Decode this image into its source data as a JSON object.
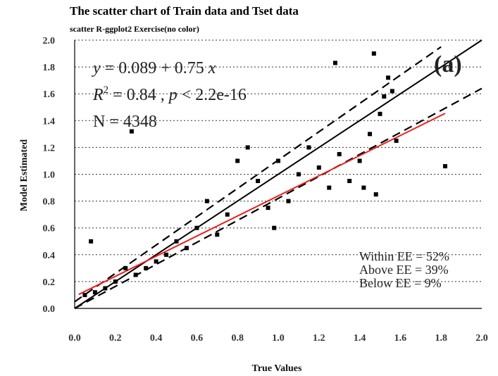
{
  "chart_data": {
    "type": "scatter",
    "title": "The scatter chart of Train data and Tset data",
    "subtitle": "scatter R-ggplot2 Exercise(no color)",
    "xlabel": "True Values",
    "ylabel": "Model Estimated",
    "xlim": [
      0.0,
      2.0
    ],
    "ylim": [
      0.0,
      2.0
    ],
    "xticks": [
      "0.0",
      "0.2",
      "0.4",
      "0.6",
      "0.8",
      "1.0",
      "1.2",
      "1.4",
      "1.6",
      "1.8",
      "2.0"
    ],
    "yticks": [
      "0.0",
      "0.2",
      "0.4",
      "0.6",
      "0.8",
      "1.0",
      "1.2",
      "1.4",
      "1.6",
      "1.8",
      "2.0"
    ],
    "grid": "horizontal-dotted",
    "panel_label": "(a)",
    "annotations": {
      "equation_prefix": "y",
      "equation_body": " = 0.089 + 0.75 ",
      "equation_var": "x",
      "r2_prefix": "R",
      "r2_sup": "2",
      "r2_body": " = 0.84 , ",
      "p_var": "p",
      "p_body": " < 2.2e-16",
      "n_text": "N = 4348",
      "within_ee": "Within EE = 52%",
      "above_ee": "Above EE = 39%",
      "below_ee": "Below EE = 9%"
    },
    "lines": {
      "one_to_one": {
        "x": [
          0.0,
          2.0
        ],
        "y": [
          0.0,
          2.0
        ],
        "color": "#000000",
        "style": "solid"
      },
      "ee_upper": {
        "x": [
          0.0,
          1.8
        ],
        "y": [
          0.05,
          1.95
        ],
        "color": "#000000",
        "style": "dashed"
      },
      "ee_lower": {
        "x": [
          0.0,
          2.0
        ],
        "y": [
          0.0,
          1.64
        ],
        "color": "#000000",
        "style": "dashed"
      },
      "regression": {
        "x": [
          0.02,
          1.82
        ],
        "y": [
          0.104,
          1.454
        ],
        "color": "#e8201c",
        "style": "solid"
      }
    },
    "series": [
      {
        "points": [
          [
            1.28,
            1.83
          ],
          [
            1.47,
            1.9
          ],
          [
            1.54,
            1.72
          ],
          [
            1.82,
            1.06
          ],
          [
            1.56,
            1.62
          ],
          [
            1.52,
            1.58
          ],
          [
            1.45,
            1.3
          ],
          [
            1.5,
            1.45
          ],
          [
            1.58,
            1.25
          ],
          [
            1.4,
            1.1
          ],
          [
            1.35,
            0.95
          ],
          [
            1.42,
            0.9
          ],
          [
            1.48,
            0.85
          ],
          [
            1.3,
            1.15
          ],
          [
            1.25,
            0.9
          ],
          [
            1.2,
            1.05
          ],
          [
            1.15,
            1.2
          ],
          [
            1.1,
            1.0
          ],
          [
            1.05,
            0.8
          ],
          [
            1.0,
            1.1
          ],
          [
            0.98,
            0.6
          ],
          [
            0.95,
            0.75
          ],
          [
            0.9,
            0.95
          ],
          [
            0.85,
            1.2
          ],
          [
            0.8,
            1.1
          ],
          [
            0.75,
            0.7
          ],
          [
            0.7,
            0.55
          ],
          [
            0.65,
            0.8
          ],
          [
            0.6,
            0.6
          ],
          [
            0.55,
            0.45
          ],
          [
            0.5,
            0.5
          ],
          [
            0.45,
            0.4
          ],
          [
            0.4,
            0.35
          ],
          [
            0.35,
            0.3
          ],
          [
            0.3,
            0.25
          ],
          [
            0.28,
            1.32
          ],
          [
            0.25,
            0.3
          ],
          [
            0.2,
            0.2
          ],
          [
            0.15,
            0.15
          ],
          [
            0.1,
            0.12
          ],
          [
            0.05,
            0.1
          ],
          [
            0.08,
            0.5
          ]
        ]
      }
    ]
  }
}
